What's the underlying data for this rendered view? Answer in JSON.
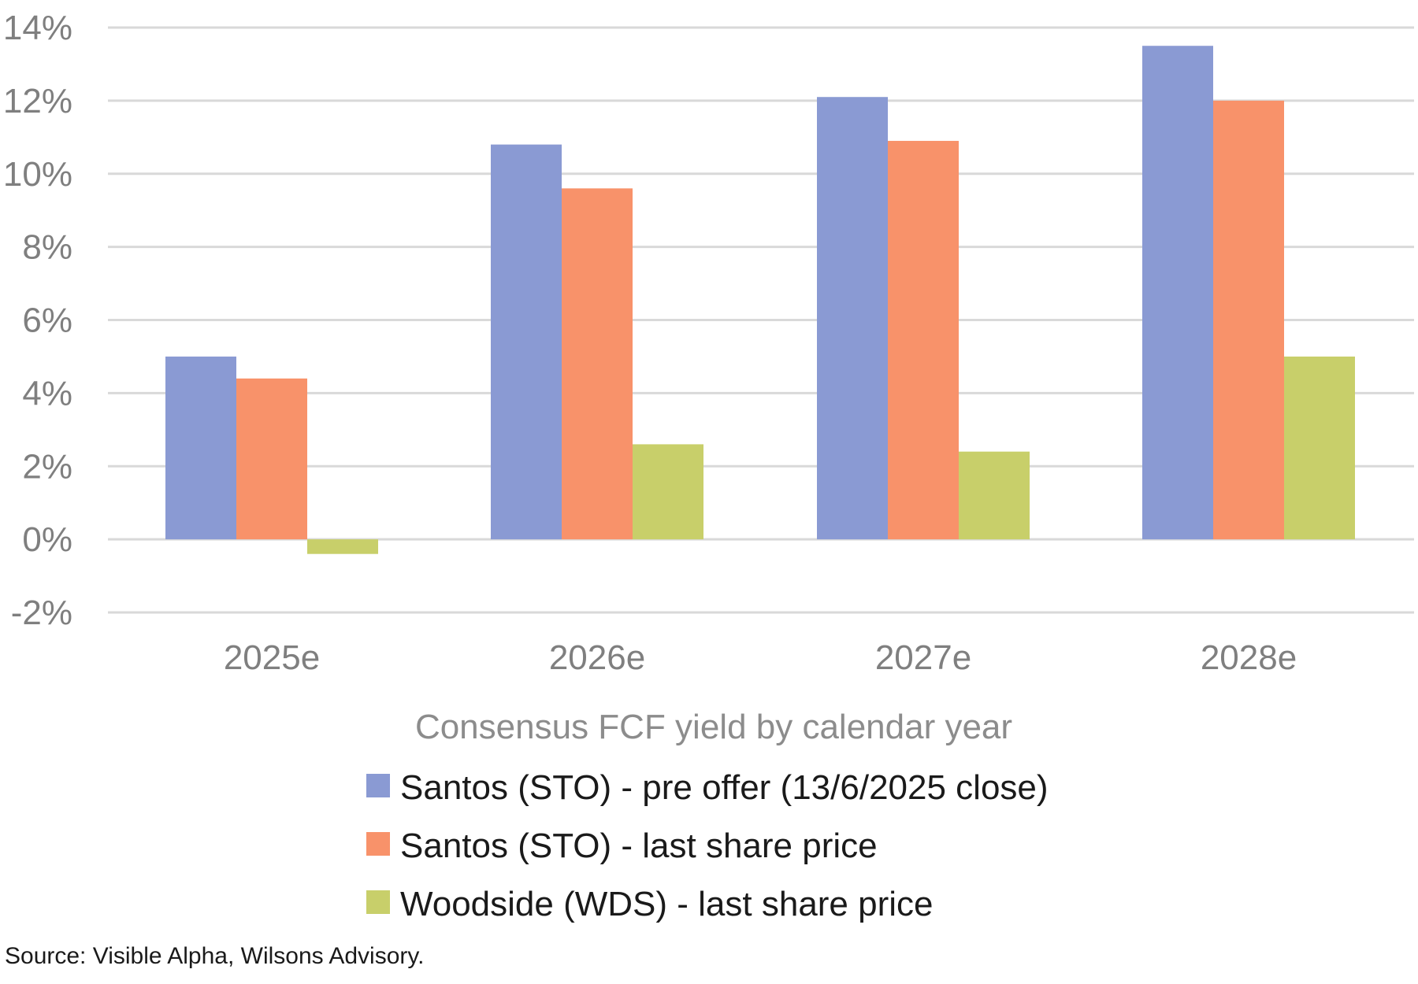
{
  "chart_data": {
    "type": "bar",
    "categories": [
      "2025e",
      "2026e",
      "2027e",
      "2028e"
    ],
    "series": [
      {
        "name": "Santos (STO) - pre offer (13/6/2025 close)",
        "color": "#8a9ad3",
        "values": [
          5.0,
          10.8,
          12.1,
          13.5
        ]
      },
      {
        "name": "Santos (STO) - last share price",
        "color": "#f8926a",
        "values": [
          4.4,
          9.6,
          10.9,
          12.0
        ]
      },
      {
        "name": "Woodside (WDS) - last share price",
        "color": "#c8cf6a",
        "values": [
          -0.4,
          2.6,
          2.4,
          5.0
        ]
      }
    ],
    "y_ticks": [
      "14%",
      "12%",
      "10%",
      "8%",
      "6%",
      "4%",
      "2%",
      "0%",
      "-2%"
    ],
    "ylim": [
      -2,
      14
    ],
    "xlabel": "Consensus FCF yield by calendar year",
    "ylabel": "",
    "grid": true,
    "legend_position": "bottom"
  },
  "source": "Source: Visible Alpha, Wilsons Advisory."
}
